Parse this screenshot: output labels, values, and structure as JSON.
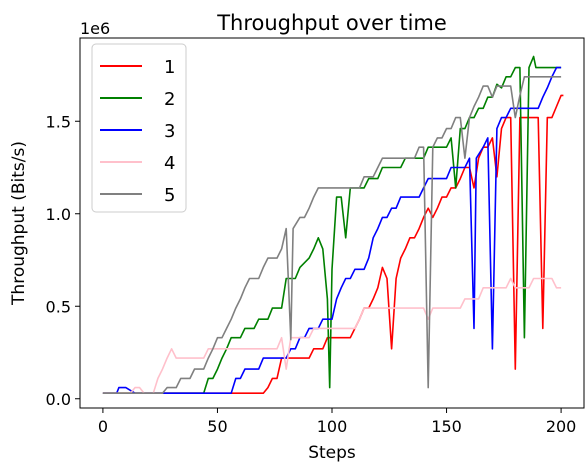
{
  "chart_data": {
    "type": "line",
    "title": "Throughput over time",
    "xlabel": "Steps",
    "ylabel": "Throughput (Bits/s)",
    "offset_label": "1e6",
    "xlim": [
      -10,
      210
    ],
    "ylim": [
      -50000,
      1950000
    ],
    "xticks": [
      0,
      50,
      100,
      150,
      200
    ],
    "xtick_labels": [
      "0",
      "50",
      "100",
      "150",
      "200"
    ],
    "yticks": [
      0,
      500000,
      1000000,
      1500000
    ],
    "ytick_labels": [
      "0.0",
      "0.5",
      "1.0",
      "1.5"
    ],
    "grid": false,
    "legend_position": "top-left",
    "series": [
      {
        "name": "1",
        "color": "#ff0000",
        "points": [
          [
            0,
            30000
          ],
          [
            70,
            30000
          ],
          [
            72,
            60000
          ],
          [
            74,
            110000
          ],
          [
            76,
            110000
          ],
          [
            78,
            220000
          ],
          [
            90,
            220000
          ],
          [
            92,
            270000
          ],
          [
            96,
            270000
          ],
          [
            98,
            330000
          ],
          [
            108,
            330000
          ],
          [
            110,
            380000
          ],
          [
            112,
            430000
          ],
          [
            114,
            490000
          ],
          [
            116,
            490000
          ],
          [
            118,
            540000
          ],
          [
            120,
            600000
          ],
          [
            122,
            710000
          ],
          [
            124,
            650000
          ],
          [
            126,
            270000
          ],
          [
            128,
            650000
          ],
          [
            130,
            760000
          ],
          [
            132,
            810000
          ],
          [
            134,
            870000
          ],
          [
            136,
            870000
          ],
          [
            138,
            920000
          ],
          [
            140,
            980000
          ],
          [
            142,
            1030000
          ],
          [
            144,
            980000
          ],
          [
            146,
            1030000
          ],
          [
            148,
            1090000
          ],
          [
            150,
            1090000
          ],
          [
            152,
            1140000
          ],
          [
            154,
            1140000
          ],
          [
            156,
            1190000
          ],
          [
            158,
            1250000
          ],
          [
            160,
            1250000
          ],
          [
            162,
            1140000
          ],
          [
            164,
            1300000
          ],
          [
            166,
            1360000
          ],
          [
            168,
            1360000
          ],
          [
            170,
            1410000
          ],
          [
            172,
            1200000
          ],
          [
            174,
            1460000
          ],
          [
            176,
            1520000
          ],
          [
            178,
            1520000
          ],
          [
            180,
            160000
          ],
          [
            182,
            1520000
          ],
          [
            190,
            1520000
          ],
          [
            192,
            380000
          ],
          [
            194,
            1520000
          ],
          [
            196,
            1520000
          ],
          [
            198,
            1580000
          ],
          [
            200,
            1640000
          ],
          [
            201,
            1640000
          ]
        ]
      },
      {
        "name": "2",
        "color": "#008000",
        "points": [
          [
            0,
            30000
          ],
          [
            44,
            30000
          ],
          [
            46,
            110000
          ],
          [
            48,
            110000
          ],
          [
            50,
            160000
          ],
          [
            52,
            220000
          ],
          [
            54,
            270000
          ],
          [
            56,
            330000
          ],
          [
            60,
            330000
          ],
          [
            62,
            380000
          ],
          [
            66,
            380000
          ],
          [
            68,
            430000
          ],
          [
            72,
            430000
          ],
          [
            74,
            490000
          ],
          [
            78,
            490000
          ],
          [
            80,
            650000
          ],
          [
            84,
            650000
          ],
          [
            86,
            710000
          ],
          [
            90,
            760000
          ],
          [
            92,
            810000
          ],
          [
            94,
            870000
          ],
          [
            96,
            810000
          ],
          [
            98,
            540000
          ],
          [
            99,
            60000
          ],
          [
            100,
            700000
          ],
          [
            102,
            1090000
          ],
          [
            104,
            1090000
          ],
          [
            106,
            870000
          ],
          [
            108,
            1140000
          ],
          [
            114,
            1140000
          ],
          [
            116,
            1190000
          ],
          [
            120,
            1190000
          ],
          [
            122,
            1250000
          ],
          [
            130,
            1250000
          ],
          [
            132,
            1300000
          ],
          [
            140,
            1300000
          ],
          [
            142,
            1360000
          ],
          [
            150,
            1360000
          ],
          [
            152,
            1410000
          ],
          [
            154,
            1140000
          ],
          [
            156,
            1460000
          ],
          [
            158,
            1460000
          ],
          [
            160,
            1520000
          ],
          [
            162,
            1520000
          ],
          [
            164,
            1570000
          ],
          [
            166,
            1570000
          ],
          [
            168,
            1630000
          ],
          [
            170,
            1630000
          ],
          [
            172,
            1700000
          ],
          [
            174,
            1680000
          ],
          [
            176,
            1740000
          ],
          [
            178,
            1740000
          ],
          [
            180,
            1790000
          ],
          [
            182,
            1790000
          ],
          [
            184,
            330000
          ],
          [
            186,
            1790000
          ],
          [
            188,
            1850000
          ],
          [
            189,
            1790000
          ],
          [
            200,
            1790000
          ]
        ]
      },
      {
        "name": "3",
        "color": "#0000ff",
        "points": [
          [
            0,
            30000
          ],
          [
            6,
            30000
          ],
          [
            7,
            60000
          ],
          [
            10,
            60000
          ],
          [
            14,
            30000
          ],
          [
            56,
            30000
          ],
          [
            58,
            110000
          ],
          [
            60,
            110000
          ],
          [
            62,
            160000
          ],
          [
            68,
            160000
          ],
          [
            70,
            220000
          ],
          [
            80,
            220000
          ],
          [
            82,
            270000
          ],
          [
            84,
            270000
          ],
          [
            86,
            330000
          ],
          [
            88,
            330000
          ],
          [
            90,
            380000
          ],
          [
            94,
            380000
          ],
          [
            96,
            430000
          ],
          [
            100,
            430000
          ],
          [
            102,
            540000
          ],
          [
            104,
            600000
          ],
          [
            106,
            650000
          ],
          [
            108,
            650000
          ],
          [
            110,
            700000
          ],
          [
            114,
            700000
          ],
          [
            116,
            760000
          ],
          [
            118,
            870000
          ],
          [
            120,
            920000
          ],
          [
            122,
            980000
          ],
          [
            124,
            980000
          ],
          [
            126,
            1030000
          ],
          [
            128,
            1030000
          ],
          [
            130,
            1090000
          ],
          [
            138,
            1090000
          ],
          [
            140,
            1140000
          ],
          [
            142,
            1190000
          ],
          [
            150,
            1190000
          ],
          [
            152,
            1250000
          ],
          [
            158,
            1250000
          ],
          [
            160,
            1300000
          ],
          [
            162,
            380000
          ],
          [
            163,
            1300000
          ],
          [
            166,
            1360000
          ],
          [
            168,
            1410000
          ],
          [
            170,
            270000
          ],
          [
            172,
            1460000
          ],
          [
            174,
            1520000
          ],
          [
            176,
            1520000
          ],
          [
            178,
            1570000
          ],
          [
            190,
            1570000
          ],
          [
            192,
            1630000
          ],
          [
            194,
            1680000
          ],
          [
            196,
            1740000
          ],
          [
            198,
            1790000
          ],
          [
            200,
            1790000
          ]
        ]
      },
      {
        "name": "4",
        "color": "#ffc0cb",
        "points": [
          [
            0,
            30000
          ],
          [
            12,
            30000
          ],
          [
            14,
            60000
          ],
          [
            16,
            60000
          ],
          [
            18,
            30000
          ],
          [
            22,
            30000
          ],
          [
            24,
            110000
          ],
          [
            26,
            160000
          ],
          [
            28,
            220000
          ],
          [
            30,
            270000
          ],
          [
            32,
            220000
          ],
          [
            44,
            220000
          ],
          [
            46,
            270000
          ],
          [
            76,
            270000
          ],
          [
            78,
            330000
          ],
          [
            80,
            160000
          ],
          [
            82,
            330000
          ],
          [
            90,
            330000
          ],
          [
            92,
            380000
          ],
          [
            110,
            380000
          ],
          [
            112,
            430000
          ],
          [
            114,
            490000
          ],
          [
            140,
            490000
          ],
          [
            142,
            430000
          ],
          [
            144,
            490000
          ],
          [
            156,
            490000
          ],
          [
            158,
            540000
          ],
          [
            164,
            540000
          ],
          [
            166,
            600000
          ],
          [
            176,
            600000
          ],
          [
            178,
            650000
          ],
          [
            180,
            600000
          ],
          [
            186,
            600000
          ],
          [
            188,
            650000
          ],
          [
            196,
            650000
          ],
          [
            198,
            600000
          ],
          [
            200,
            600000
          ]
        ]
      },
      {
        "name": "5",
        "color": "#808080",
        "points": [
          [
            0,
            30000
          ],
          [
            26,
            30000
          ],
          [
            28,
            60000
          ],
          [
            32,
            60000
          ],
          [
            34,
            110000
          ],
          [
            38,
            110000
          ],
          [
            40,
            160000
          ],
          [
            44,
            160000
          ],
          [
            46,
            220000
          ],
          [
            48,
            270000
          ],
          [
            50,
            330000
          ],
          [
            52,
            330000
          ],
          [
            54,
            380000
          ],
          [
            56,
            430000
          ],
          [
            58,
            490000
          ],
          [
            60,
            540000
          ],
          [
            62,
            600000
          ],
          [
            64,
            650000
          ],
          [
            68,
            650000
          ],
          [
            70,
            710000
          ],
          [
            72,
            760000
          ],
          [
            76,
            760000
          ],
          [
            78,
            810000
          ],
          [
            80,
            920000
          ],
          [
            82,
            320000
          ],
          [
            83,
            920000
          ],
          [
            86,
            980000
          ],
          [
            88,
            980000
          ],
          [
            90,
            1030000
          ],
          [
            92,
            1090000
          ],
          [
            94,
            1140000
          ],
          [
            112,
            1140000
          ],
          [
            114,
            1200000
          ],
          [
            118,
            1200000
          ],
          [
            120,
            1250000
          ],
          [
            122,
            1300000
          ],
          [
            136,
            1300000
          ],
          [
            138,
            1360000
          ],
          [
            140,
            1360000
          ],
          [
            142,
            60000
          ],
          [
            144,
            1360000
          ],
          [
            146,
            1410000
          ],
          [
            148,
            1410000
          ],
          [
            150,
            1460000
          ],
          [
            152,
            1460000
          ],
          [
            154,
            1520000
          ],
          [
            156,
            1520000
          ],
          [
            158,
            1300000
          ],
          [
            160,
            1520000
          ],
          [
            162,
            1580000
          ],
          [
            164,
            1630000
          ],
          [
            166,
            1690000
          ],
          [
            168,
            1690000
          ],
          [
            170,
            1630000
          ],
          [
            172,
            1690000
          ],
          [
            178,
            1690000
          ],
          [
            180,
            1520000
          ],
          [
            182,
            1640000
          ],
          [
            184,
            1740000
          ],
          [
            200,
            1740000
          ]
        ]
      }
    ]
  }
}
